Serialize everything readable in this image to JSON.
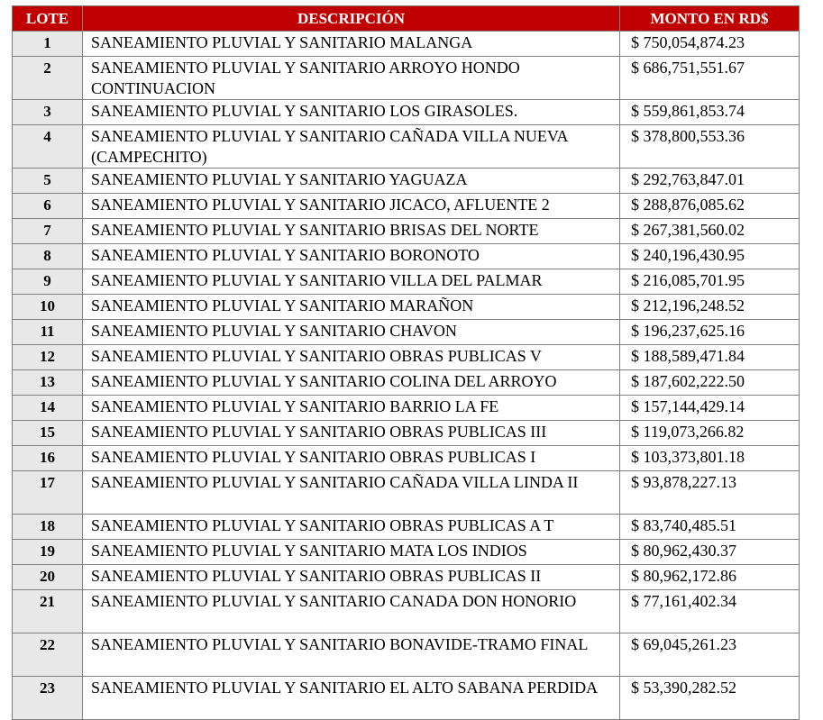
{
  "table": {
    "headers": {
      "lote": "LOTE",
      "descripcion": "DESCRIPCIÓN",
      "monto": "MONTO EN RD$"
    },
    "rows": [
      {
        "lote": "1",
        "descripcion": "SANEAMIENTO PLUVIAL Y SANITARIO MALANGA",
        "monto": "$ 750,054,874.23",
        "lines": 1
      },
      {
        "lote": "2",
        "descripcion": "SANEAMIENTO PLUVIAL Y SANITARIO ARROYO HONDO CONTINUACION",
        "monto": "$ 686,751,551.67",
        "lines": 2
      },
      {
        "lote": "3",
        "descripcion": "SANEAMIENTO PLUVIAL Y SANITARIO LOS GIRASOLES.",
        "monto": "$ 559,861,853.74",
        "lines": 1
      },
      {
        "lote": "4",
        "descripcion": "SANEAMIENTO PLUVIAL Y SANITARIO CAÑADA VILLA NUEVA (CAMPECHITO)",
        "monto": "$ 378,800,553.36",
        "lines": 2
      },
      {
        "lote": "5",
        "descripcion": "SANEAMIENTO PLUVIAL Y SANITARIO YAGUAZA",
        "monto": "$ 292,763,847.01",
        "lines": 1
      },
      {
        "lote": "6",
        "descripcion": "SANEAMIENTO PLUVIAL Y SANITARIO JICACO, AFLUENTE 2",
        "monto": "$ 288,876,085.62",
        "lines": 1
      },
      {
        "lote": "7",
        "descripcion": "SANEAMIENTO PLUVIAL Y SANITARIO BRISAS DEL NORTE",
        "monto": "$ 267,381,560.02",
        "lines": 1
      },
      {
        "lote": "8",
        "descripcion": "SANEAMIENTO PLUVIAL Y SANITARIO BORONOTO",
        "monto": "$ 240,196,430.95",
        "lines": 1
      },
      {
        "lote": "9",
        "descripcion": "SANEAMIENTO PLUVIAL Y SANITARIO VILLA DEL PALMAR",
        "monto": "$ 216,085,701.95",
        "lines": 1
      },
      {
        "lote": "10",
        "descripcion": "SANEAMIENTO PLUVIAL Y SANITARIO MARAÑON",
        "monto": "$ 212,196,248.52",
        "lines": 1
      },
      {
        "lote": "11",
        "descripcion": "SANEAMIENTO PLUVIAL Y SANITARIO CHAVON",
        "monto": "$ 196,237,625.16",
        "lines": 1
      },
      {
        "lote": "12",
        "descripcion": "SANEAMIENTO PLUVIAL Y SANITARIO OBRAS PUBLICAS V",
        "monto": "$ 188,589,471.84",
        "lines": 1
      },
      {
        "lote": "13",
        "descripcion": "SANEAMIENTO PLUVIAL Y SANITARIO COLINA DEL ARROYO",
        "monto": "$ 187,602,222.50",
        "lines": 1
      },
      {
        "lote": "14",
        "descripcion": " SANEAMIENTO PLUVIAL Y SANITARIO BARRIO LA FE",
        "monto": "$ 157,144,429.14",
        "lines": 1
      },
      {
        "lote": "15",
        "descripcion": "SANEAMIENTO PLUVIAL Y SANITARIO OBRAS PUBLICAS III",
        "monto": "$ 119,073,266.82",
        "lines": 1
      },
      {
        "lote": "16",
        "descripcion": "SANEAMIENTO PLUVIAL Y SANITARIO OBRAS PUBLICAS I",
        "monto": "$ 103,373,801.18",
        "lines": 1
      },
      {
        "lote": "17",
        "descripcion": "SANEAMIENTO PLUVIAL Y SANITARIO CAÑADA VILLA LINDA II",
        "monto": "$ 93,878,227.13",
        "lines": 2
      },
      {
        "lote": "18",
        "descripcion": "SANEAMIENTO PLUVIAL Y SANITARIO OBRAS PUBLICAS A T",
        "monto": "$ 83,740,485.51",
        "lines": 1
      },
      {
        "lote": "19",
        "descripcion": "SANEAMIENTO PLUVIAL Y SANITARIO MATA LOS INDIOS",
        "monto": "$ 80,962,430.37",
        "lines": 1
      },
      {
        "lote": "20",
        "descripcion": "SANEAMIENTO PLUVIAL Y SANITARIO OBRAS PUBLICAS II",
        "monto": "$ 80,962,172.86",
        "lines": 1
      },
      {
        "lote": "21",
        "descripcion": "SANEAMIENTO PLUVIAL Y SANITARIO CANADA DON HONORIO",
        "monto": "$ 77,161,402.34",
        "lines": 2
      },
      {
        "lote": "22",
        "descripcion": "SANEAMIENTO PLUVIAL Y SANITARIO BONAVIDE-TRAMO FINAL",
        "monto": "$ 69,045,261.23",
        "lines": 2
      },
      {
        "lote": "23",
        "descripcion": "SANEAMIENTO PLUVIAL Y SANITARIO EL ALTO SABANA PERDIDA",
        "monto": "$ 53,390,282.52",
        "lines": 2
      }
    ]
  }
}
